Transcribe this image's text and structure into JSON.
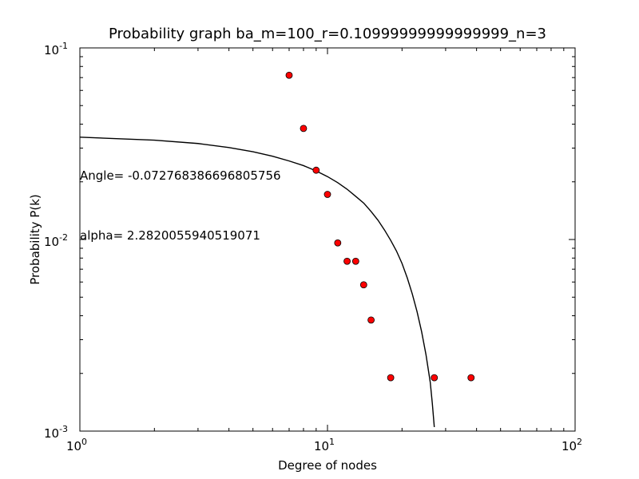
{
  "chart_data": {
    "type": "scatter",
    "title": "Probability graph ba_m=100_r=0.10999999999999999_n=3",
    "xlabel": "Degree of nodes",
    "ylabel": "Probability P(k)",
    "x_scale": "log",
    "y_scale": "log",
    "xlim": [
      1,
      100
    ],
    "ylim": [
      0.001,
      0.1
    ],
    "x_ticks": [
      {
        "value": 1,
        "base": "10",
        "exp": "0"
      },
      {
        "value": 10,
        "base": "10",
        "exp": "1"
      },
      {
        "value": 100,
        "base": "10",
        "exp": "2"
      }
    ],
    "y_ticks": [
      {
        "value": 0.001,
        "base": "10",
        "exp": "-3"
      },
      {
        "value": 0.01,
        "base": "10",
        "exp": "-2"
      },
      {
        "value": 0.1,
        "base": "10",
        "exp": "-1"
      }
    ],
    "grid": false,
    "legend": "none",
    "annotations": [
      {
        "text": "Angle= -0.072768386696805756",
        "x": 1.0,
        "y": 0.0215
      },
      {
        "text": "alpha= 2.2820055940519071",
        "x": 1.0,
        "y": 0.0105
      }
    ],
    "series": [
      {
        "kind": "points",
        "color": "#ff0000",
        "edge_color": "#000000",
        "points": [
          {
            "x": 7,
            "y": 0.072
          },
          {
            "x": 8,
            "y": 0.038
          },
          {
            "x": 9,
            "y": 0.023
          },
          {
            "x": 10,
            "y": 0.0172
          },
          {
            "x": 11,
            "y": 0.0096
          },
          {
            "x": 12,
            "y": 0.0077
          },
          {
            "x": 13,
            "y": 0.0077
          },
          {
            "x": 14,
            "y": 0.0058
          },
          {
            "x": 15,
            "y": 0.0038
          },
          {
            "x": 18,
            "y": 0.0019
          },
          {
            "x": 27,
            "y": 0.0019
          },
          {
            "x": 38,
            "y": 0.0019
          }
        ]
      },
      {
        "kind": "line",
        "color": "#000000",
        "points": [
          {
            "x": 1.0,
            "y": 0.0342
          },
          {
            "x": 2.0,
            "y": 0.033
          },
          {
            "x": 3.0,
            "y": 0.0317
          },
          {
            "x": 4.0,
            "y": 0.0302
          },
          {
            "x": 5.0,
            "y": 0.0287
          },
          {
            "x": 6.0,
            "y": 0.0272
          },
          {
            "x": 7.0,
            "y": 0.0257
          },
          {
            "x": 8.0,
            "y": 0.0243
          },
          {
            "x": 9.0,
            "y": 0.0228
          },
          {
            "x": 10.0,
            "y": 0.0213
          },
          {
            "x": 11.0,
            "y": 0.0198
          },
          {
            "x": 12.0,
            "y": 0.0183
          },
          {
            "x": 13.0,
            "y": 0.0168
          },
          {
            "x": 14.0,
            "y": 0.0155
          },
          {
            "x": 15.0,
            "y": 0.014
          },
          {
            "x": 16.0,
            "y": 0.0126
          },
          {
            "x": 17.0,
            "y": 0.0112
          },
          {
            "x": 18.0,
            "y": 0.0099
          },
          {
            "x": 19.0,
            "y": 0.0087
          },
          {
            "x": 20.0,
            "y": 0.0075
          },
          {
            "x": 21.0,
            "y": 0.0063
          },
          {
            "x": 22.0,
            "y": 0.0052
          },
          {
            "x": 23.0,
            "y": 0.0042
          },
          {
            "x": 24.0,
            "y": 0.0033
          },
          {
            "x": 25.0,
            "y": 0.0025
          },
          {
            "x": 26.0,
            "y": 0.0018
          },
          {
            "x": 26.5,
            "y": 0.0014
          },
          {
            "x": 27.0,
            "y": 0.00105
          }
        ]
      }
    ]
  }
}
